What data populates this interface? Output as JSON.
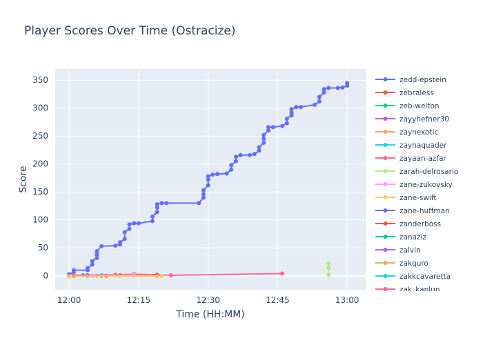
{
  "chart_data": {
    "type": "line",
    "title": "Player Scores Over Time (Ostracize)",
    "xlabel": "Time (HH:MM)",
    "ylabel": "Score",
    "x_ticks": [
      "12:00",
      "12:15",
      "12:30",
      "12:45",
      "13:00"
    ],
    "xlim": [
      "11:57",
      "13:04"
    ],
    "ylim": [
      -25,
      370
    ],
    "y_ticks": [
      0,
      50,
      100,
      150,
      200,
      250,
      300,
      350
    ],
    "grid": true,
    "legend_position": "right",
    "series": [
      {
        "name": "zedd-epstein",
        "color": "#636efa",
        "x": [
          "12:00",
          "12:01",
          "12:01",
          "12:04",
          "12:04",
          "12:05",
          "12:05",
          "12:06",
          "12:06",
          "12:06",
          "12:07",
          "12:10",
          "12:11",
          "12:11",
          "12:12",
          "12:12",
          "12:13",
          "12:13",
          "12:14",
          "12:14",
          "12:15",
          "12:18",
          "12:18",
          "12:19",
          "12:19",
          "12:19",
          "12:20",
          "12:20",
          "12:21",
          "12:28",
          "12:29",
          "12:29",
          "12:29",
          "12:30",
          "12:30",
          "12:30",
          "12:31",
          "12:32",
          "12:34",
          "12:35",
          "12:35",
          "12:36",
          "12:36",
          "12:37",
          "12:37",
          "12:39",
          "12:40",
          "12:41",
          "12:41",
          "12:42",
          "12:42",
          "12:42",
          "12:43",
          "12:43",
          "12:44",
          "12:46",
          "12:47",
          "12:47",
          "12:48",
          "12:48",
          "12:48",
          "12:49",
          "12:49",
          "12:50",
          "12:53",
          "12:54",
          "12:54",
          "12:55",
          "12:55",
          "12:56",
          "12:58",
          "12:59",
          "13:00",
          "13:00"
        ],
        "values": [
          3,
          6,
          10,
          10,
          14,
          20,
          26,
          32,
          38,
          44,
          53,
          54,
          56,
          60,
          66,
          78,
          84,
          92,
          94,
          94,
          94,
          98,
          106,
          114,
          122,
          128,
          130,
          130,
          130,
          130,
          140,
          146,
          153,
          162,
          172,
          178,
          181,
          182,
          183,
          190,
          198,
          205,
          213,
          216,
          216,
          216,
          218,
          224,
          230,
          238,
          245,
          252,
          260,
          266,
          266,
          268,
          273,
          281,
          287,
          292,
          298,
          302,
          302,
          302,
          306,
          312,
          320,
          328,
          334,
          336,
          336,
          337,
          340,
          345
        ]
      },
      {
        "name": "zebraless",
        "color": "#ef553b",
        "x": [
          "12:01",
          "12:04",
          "12:08",
          "12:11",
          "12:19"
        ],
        "values": [
          0,
          1,
          0,
          1,
          2
        ]
      },
      {
        "name": "zeb-welton",
        "color": "#00cc96",
        "x": [
          "12:03",
          "12:07"
        ],
        "values": [
          1,
          0
        ]
      },
      {
        "name": "zayyhefner30",
        "color": "#ab63fa",
        "x": [
          "12:04",
          "12:05"
        ],
        "values": [
          0,
          0
        ]
      },
      {
        "name": "zaynexotic",
        "color": "#ffa15a",
        "x": [
          "12:00",
          "12:06",
          "12:19"
        ],
        "values": [
          -1,
          0,
          0
        ]
      },
      {
        "name": "zaynaquader",
        "color": "#19d3f3",
        "x": [
          "12:04",
          "12:07"
        ],
        "values": [
          0,
          1
        ]
      },
      {
        "name": "zayaan-azfar",
        "color": "#ff6692",
        "x": [
          "12:01",
          "12:10",
          "12:14",
          "12:22",
          "12:46"
        ],
        "values": [
          1,
          2,
          3,
          1,
          4
        ]
      },
      {
        "name": "zarah-delrosario",
        "color": "#b6e880",
        "x": [
          "12:56",
          "12:56",
          "12:56"
        ],
        "values": [
          2,
          14,
          22
        ]
      },
      {
        "name": "zane-zukovsky",
        "color": "#ff97ff",
        "x": [
          "12:05",
          "12:14"
        ],
        "values": [
          0,
          1
        ]
      },
      {
        "name": "zane-swift",
        "color": "#fecb52",
        "x": [
          "12:00",
          "12:20"
        ],
        "values": [
          -1,
          0
        ]
      },
      {
        "name": "zane-huffman",
        "color": "#636efa",
        "x": [],
        "values": []
      },
      {
        "name": "zanderboss",
        "color": "#ef553b",
        "x": [],
        "values": []
      },
      {
        "name": "zanaziz",
        "color": "#00cc96",
        "x": [],
        "values": []
      },
      {
        "name": "zalvin",
        "color": "#ab63fa",
        "x": [],
        "values": []
      },
      {
        "name": "zakquro",
        "color": "#ffa15a",
        "x": [],
        "values": []
      },
      {
        "name": "zakkcavaretta",
        "color": "#19d3f3",
        "x": [],
        "values": []
      },
      {
        "name": "zak_kaplun",
        "color": "#ff6692",
        "x": [],
        "values": []
      }
    ]
  }
}
